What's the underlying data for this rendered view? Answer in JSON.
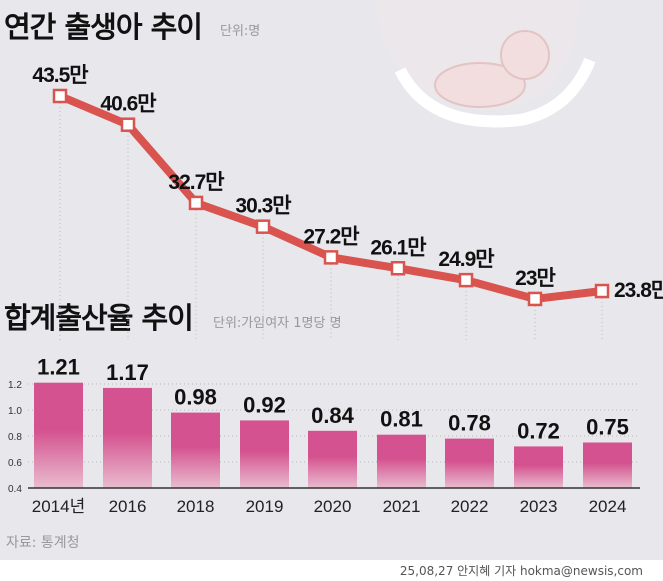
{
  "line_title": "연간 출생아 추이",
  "line_unit": "단위:명",
  "bar_title": "합계출산율 추이",
  "bar_unit": "단위:가임여자 1명당 명",
  "source": "자료: 통계청",
  "credit": "25,08,27 안지혜 기자 hokma@newsis,com",
  "colors": {
    "line": "#d9534f",
    "bar_top": "#d4528f",
    "bar_bottom": "#e9bccf",
    "background": "#e7e7ec"
  },
  "chart_data": [
    {
      "type": "line",
      "title": "연간 출생아 추이",
      "unit": "단위:명",
      "categories": [
        "2014",
        "2016",
        "2018",
        "2019",
        "2020",
        "2021",
        "2022",
        "2023",
        "2024"
      ],
      "values": [
        43.5,
        40.6,
        32.7,
        30.3,
        27.2,
        26.1,
        24.9,
        23,
        23.8
      ],
      "data_labels": [
        "43.5만",
        "40.6만",
        "32.7만",
        "30.3만",
        "27.2만",
        "26.1만",
        "24.9만",
        "23만",
        "23.8만"
      ]
    },
    {
      "type": "bar",
      "title": "합계출산율 추이",
      "unit": "단위:가임여자 1명당 명",
      "categories": [
        "2014년",
        "2016",
        "2018",
        "2019",
        "2020",
        "2021",
        "2022",
        "2023",
        "2024"
      ],
      "values": [
        1.21,
        1.17,
        0.98,
        0.92,
        0.84,
        0.81,
        0.78,
        0.72,
        0.75
      ],
      "data_labels": [
        "1.21",
        "1.17",
        "0.98",
        "0.92",
        "0.84",
        "0.81",
        "0.78",
        "0.72",
        "0.75"
      ],
      "yticks": [
        "0.4",
        "0.6",
        "0.8",
        "1.0",
        "1.2"
      ],
      "ylim": [
        0.4,
        1.2
      ],
      "grid": true
    }
  ]
}
